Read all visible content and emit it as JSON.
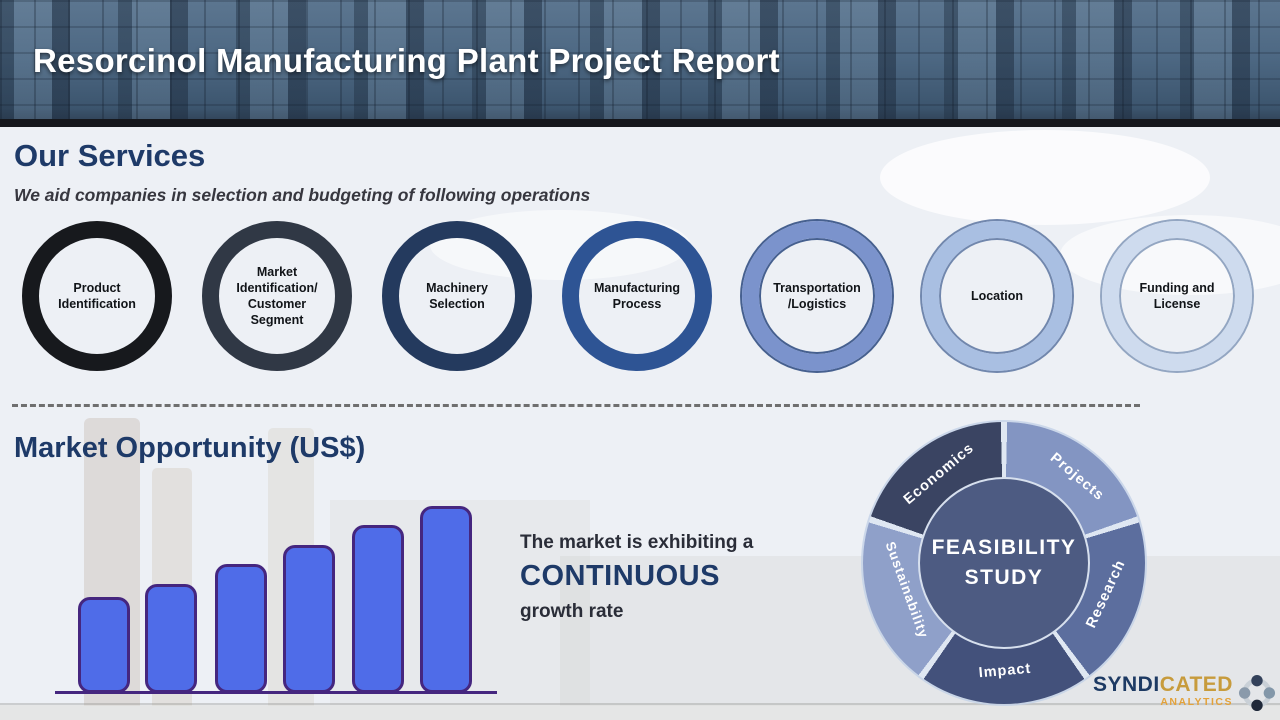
{
  "header": {
    "title": "Resorcinol Manufacturing Plant Project Report"
  },
  "services": {
    "heading": "Our Services",
    "subtitle": "We aid companies in selection and budgeting of following operations",
    "items": [
      {
        "label": "Product Identification",
        "ring_color": "#17191d"
      },
      {
        "label": "Market Identification/ Customer Segment",
        "ring_color": "#303845"
      },
      {
        "label": "Machinery Selection",
        "ring_color": "#243a5e"
      },
      {
        "label": "Manufacturing Process",
        "ring_color": "#2e5494"
      },
      {
        "label": "Transportation /Logistics",
        "ring_color": "#7b93cc",
        "outline_color": "#46608f"
      },
      {
        "label": "Location",
        "ring_color": "#a9bfe2",
        "outline_color": "#7187ad"
      },
      {
        "label": "Funding and License",
        "ring_color": "#cedbee",
        "outline_color": "#93a6c2"
      }
    ]
  },
  "market_opportunity": {
    "heading": "Market Opportunity (US$)",
    "statement_line1": "The market is exhibiting a",
    "statement_emphasis": "CONTINUOUS",
    "statement_line3": "growth rate"
  },
  "chart_data": [
    {
      "type": "bar",
      "title": "Market Opportunity (US$)",
      "categories": [
        "",
        "",
        "",
        "",
        "",
        ""
      ],
      "values": [
        96,
        109,
        129,
        148,
        168,
        187
      ],
      "value_note": "unlabeled bars, steadily increasing heights (relative px)",
      "xlabel": "",
      "ylabel": "",
      "grid": false,
      "legend": false,
      "bar_color": "#4f6ce8",
      "bar_border_color": "#45267f",
      "axis_color": "#45267f",
      "trend": "increasing"
    },
    {
      "type": "pie",
      "variant": "donut",
      "center_label_line1": "FEASIBILITY",
      "center_label_line2": "STUDY",
      "center_color": "#4d5b82",
      "separator_color": "#dfe7f2",
      "segments": [
        {
          "label": "Projects",
          "value": 20,
          "color": "#8395c2"
        },
        {
          "label": "Research",
          "value": 20,
          "color": "#5c6e9e"
        },
        {
          "label": "Impact",
          "value": 20,
          "color": "#43517b"
        },
        {
          "label": "Sustainability",
          "value": 20,
          "color": "#8fa0c9"
        },
        {
          "label": "Economics",
          "value": 20,
          "color": "#3a4462"
        }
      ]
    }
  ],
  "logo": {
    "name_part1": "SYNDI",
    "name_part2": "CATED",
    "subtitle": "ANALYTICS",
    "icon": "dots-circle-icon",
    "icon_dot_colors": [
      "#33415a",
      "#8397a9",
      "#20293a",
      "#8a9aab"
    ]
  }
}
